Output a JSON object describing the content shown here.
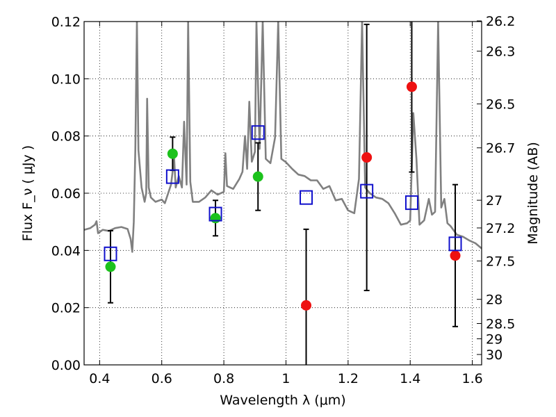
{
  "chart_data": {
    "type": "scatter",
    "xlabel": "Wavelength λ (μm)",
    "ylabel": "Flux F_ν ( μJy )",
    "y2label": "Magnitude (AB)",
    "xlim": [
      0.35,
      1.63
    ],
    "ylim": [
      0.0,
      0.12
    ],
    "grid": true,
    "xticks": [
      0.4,
      0.6,
      0.8,
      1.0,
      1.2,
      1.4,
      1.6
    ],
    "xtick_labels": [
      "0.4",
      "0.6",
      "0.8",
      "1",
      "1.2",
      "1.4",
      "1.6"
    ],
    "yticks": [
      0.0,
      0.02,
      0.04,
      0.06,
      0.08,
      0.1,
      0.12
    ],
    "ytick_labels": [
      "0.00",
      "0.02",
      "0.04",
      "0.06",
      "0.08",
      "0.10",
      "0.12"
    ],
    "mag_ticks": [
      {
        "label": "26.2",
        "mag": 26.2
      },
      {
        "label": "26.3",
        "mag": 26.3
      },
      {
        "label": "26.5",
        "mag": 26.5
      },
      {
        "label": "26.7",
        "mag": 26.7
      },
      {
        "label": "27",
        "mag": 27.0
      },
      {
        "label": "27.2",
        "mag": 27.2
      },
      {
        "label": "27.5",
        "mag": 27.5
      },
      {
        "label": "28",
        "mag": 28.0
      },
      {
        "label": "28.5",
        "mag": 28.5
      },
      {
        "label": "29",
        "mag": 29.0
      },
      {
        "label": "30",
        "mag": 30.0
      }
    ],
    "observed_detections": {
      "color": "#1cc21c",
      "points": [
        {
          "x": 0.435,
          "y": 0.0343,
          "err": 0.0126
        },
        {
          "x": 0.635,
          "y": 0.0738,
          "err": 0.0058
        },
        {
          "x": 0.773,
          "y": 0.0513,
          "err": 0.0062
        },
        {
          "x": 0.91,
          "y": 0.0658,
          "err": 0.0118
        }
      ]
    },
    "observed_upper": {
      "color": "#ee1111",
      "points": [
        {
          "x": 1.065,
          "y": 0.0208,
          "err": 0.0266
        },
        {
          "x": 1.26,
          "y": 0.0725,
          "err": 0.0465
        },
        {
          "x": 1.405,
          "y": 0.0972,
          "err": 0.0298
        },
        {
          "x": 1.545,
          "y": 0.0382,
          "err": 0.0248
        }
      ]
    },
    "model_photometry": {
      "color": "#1010cc",
      "points": [
        {
          "x": 0.435,
          "y": 0.0388
        },
        {
          "x": 0.635,
          "y": 0.0658
        },
        {
          "x": 0.773,
          "y": 0.0527
        },
        {
          "x": 0.91,
          "y": 0.0812
        },
        {
          "x": 1.065,
          "y": 0.0585
        },
        {
          "x": 1.26,
          "y": 0.0607
        },
        {
          "x": 1.405,
          "y": 0.0567
        },
        {
          "x": 1.545,
          "y": 0.0423
        }
      ]
    },
    "model_spectrum": {
      "color": "#808080",
      "points": [
        [
          0.35,
          0.0472
        ],
        [
          0.37,
          0.0478
        ],
        [
          0.385,
          0.049
        ],
        [
          0.39,
          0.0502
        ],
        [
          0.395,
          0.046
        ],
        [
          0.41,
          0.0472
        ],
        [
          0.43,
          0.0468
        ],
        [
          0.45,
          0.0478
        ],
        [
          0.47,
          0.0482
        ],
        [
          0.49,
          0.0475
        ],
        [
          0.5,
          0.044
        ],
        [
          0.505,
          0.0395
        ],
        [
          0.51,
          0.05
        ],
        [
          0.515,
          0.075
        ],
        [
          0.52,
          0.12
        ],
        [
          0.525,
          0.075
        ],
        [
          0.535,
          0.062
        ],
        [
          0.545,
          0.057
        ],
        [
          0.55,
          0.06
        ],
        [
          0.553,
          0.093
        ],
        [
          0.558,
          0.062
        ],
        [
          0.565,
          0.0585
        ],
        [
          0.58,
          0.057
        ],
        [
          0.6,
          0.0578
        ],
        [
          0.61,
          0.0565
        ],
        [
          0.63,
          0.063
        ],
        [
          0.64,
          0.072
        ],
        [
          0.645,
          0.062
        ],
        [
          0.655,
          0.066
        ],
        [
          0.665,
          0.062
        ],
        [
          0.672,
          0.085
        ],
        [
          0.68,
          0.063
        ],
        [
          0.685,
          0.12
        ],
        [
          0.692,
          0.064
        ],
        [
          0.7,
          0.057
        ],
        [
          0.72,
          0.057
        ],
        [
          0.74,
          0.0585
        ],
        [
          0.76,
          0.061
        ],
        [
          0.78,
          0.0595
        ],
        [
          0.8,
          0.0605
        ],
        [
          0.805,
          0.074
        ],
        [
          0.81,
          0.0625
        ],
        [
          0.83,
          0.0615
        ],
        [
          0.85,
          0.065
        ],
        [
          0.86,
          0.0675
        ],
        [
          0.868,
          0.08
        ],
        [
          0.875,
          0.0685
        ],
        [
          0.882,
          0.092
        ],
        [
          0.89,
          0.071
        ],
        [
          0.9,
          0.0745
        ],
        [
          0.905,
          0.12
        ],
        [
          0.915,
          0.0755
        ],
        [
          0.925,
          0.12
        ],
        [
          0.935,
          0.072
        ],
        [
          0.95,
          0.0705
        ],
        [
          0.965,
          0.0795
        ],
        [
          0.975,
          0.12
        ],
        [
          0.985,
          0.072
        ],
        [
          1.0,
          0.0708
        ],
        [
          1.02,
          0.0685
        ],
        [
          1.04,
          0.0665
        ],
        [
          1.06,
          0.066
        ],
        [
          1.08,
          0.0645
        ],
        [
          1.1,
          0.0645
        ],
        [
          1.12,
          0.0615
        ],
        [
          1.14,
          0.0625
        ],
        [
          1.16,
          0.0575
        ],
        [
          1.18,
          0.058
        ],
        [
          1.2,
          0.054
        ],
        [
          1.22,
          0.053
        ],
        [
          1.235,
          0.065
        ],
        [
          1.245,
          0.12
        ],
        [
          1.255,
          0.062
        ],
        [
          1.27,
          0.06
        ],
        [
          1.29,
          0.0585
        ],
        [
          1.31,
          0.058
        ],
        [
          1.33,
          0.0565
        ],
        [
          1.35,
          0.053
        ],
        [
          1.37,
          0.049
        ],
        [
          1.39,
          0.0495
        ],
        [
          1.4,
          0.0505
        ],
        [
          1.41,
          0.088
        ],
        [
          1.42,
          0.072
        ],
        [
          1.43,
          0.049
        ],
        [
          1.445,
          0.0505
        ],
        [
          1.46,
          0.058
        ],
        [
          1.47,
          0.0525
        ],
        [
          1.48,
          0.0535
        ],
        [
          1.49,
          0.12
        ],
        [
          1.5,
          0.055
        ],
        [
          1.51,
          0.058
        ],
        [
          1.52,
          0.0495
        ],
        [
          1.53,
          0.0485
        ],
        [
          1.55,
          0.0455
        ],
        [
          1.57,
          0.0448
        ],
        [
          1.59,
          0.0435
        ],
        [
          1.61,
          0.0425
        ],
        [
          1.63,
          0.0407
        ]
      ]
    }
  }
}
